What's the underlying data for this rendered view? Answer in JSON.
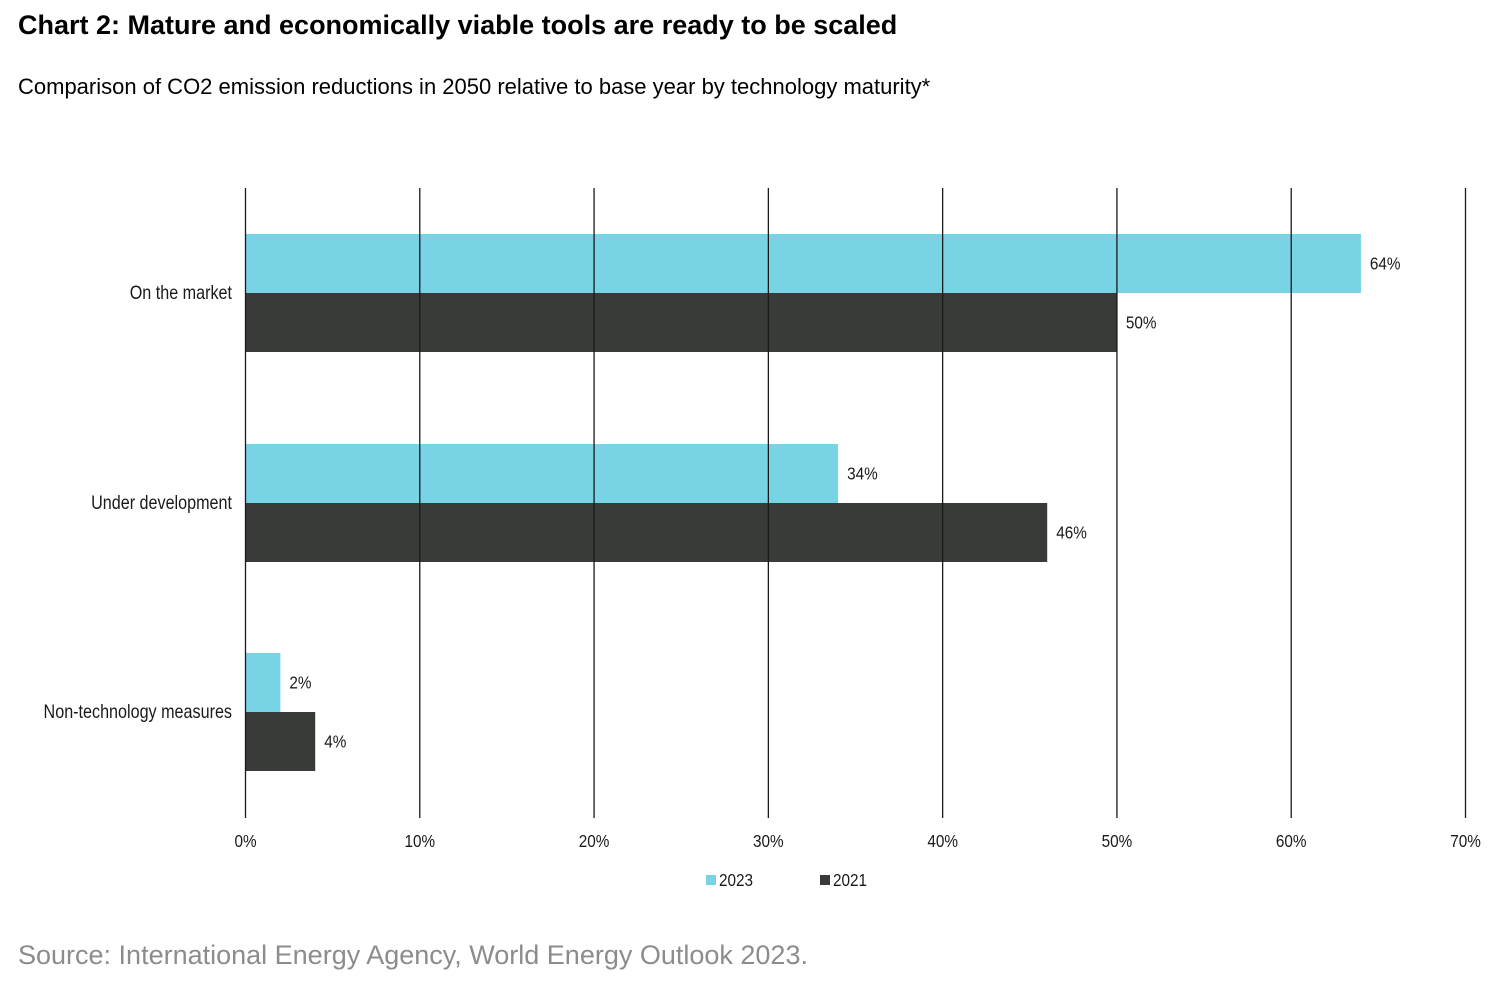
{
  "header": {
    "title": "Chart 2: Mature and economically viable tools are ready to be scaled",
    "subtitle": "Comparison of CO2 emission reductions in 2050 relative to base year by technology maturity*"
  },
  "footer": {
    "source": "Source: International Energy Agency, World Energy Outlook 2023."
  },
  "chart_data": {
    "type": "bar",
    "orientation": "horizontal",
    "title": "Chart 2: Mature and economically viable tools are ready to be scaled",
    "subtitle": "Comparison of CO2 emission reductions in 2050 relative to base year by technology maturity*",
    "categories": [
      "On the market",
      "Under development",
      "Non-technology measures"
    ],
    "series": [
      {
        "name": "2023",
        "color": "#78D3E4",
        "values": [
          64,
          34,
          2
        ],
        "labels": [
          "64%",
          "34%",
          "2%"
        ]
      },
      {
        "name": "2021",
        "color": "#393B38",
        "values": [
          50,
          46,
          4
        ],
        "labels": [
          "50%",
          "46%",
          "4%"
        ]
      }
    ],
    "xlim": [
      0,
      70
    ],
    "xticks": [
      0,
      10,
      20,
      30,
      40,
      50,
      60,
      70
    ],
    "xtick_labels": [
      "0%",
      "10%",
      "20%",
      "30%",
      "40%",
      "50%",
      "60%",
      "70%"
    ],
    "grid": true,
    "legend_position": "bottom-center",
    "xlabel": "",
    "ylabel": ""
  }
}
